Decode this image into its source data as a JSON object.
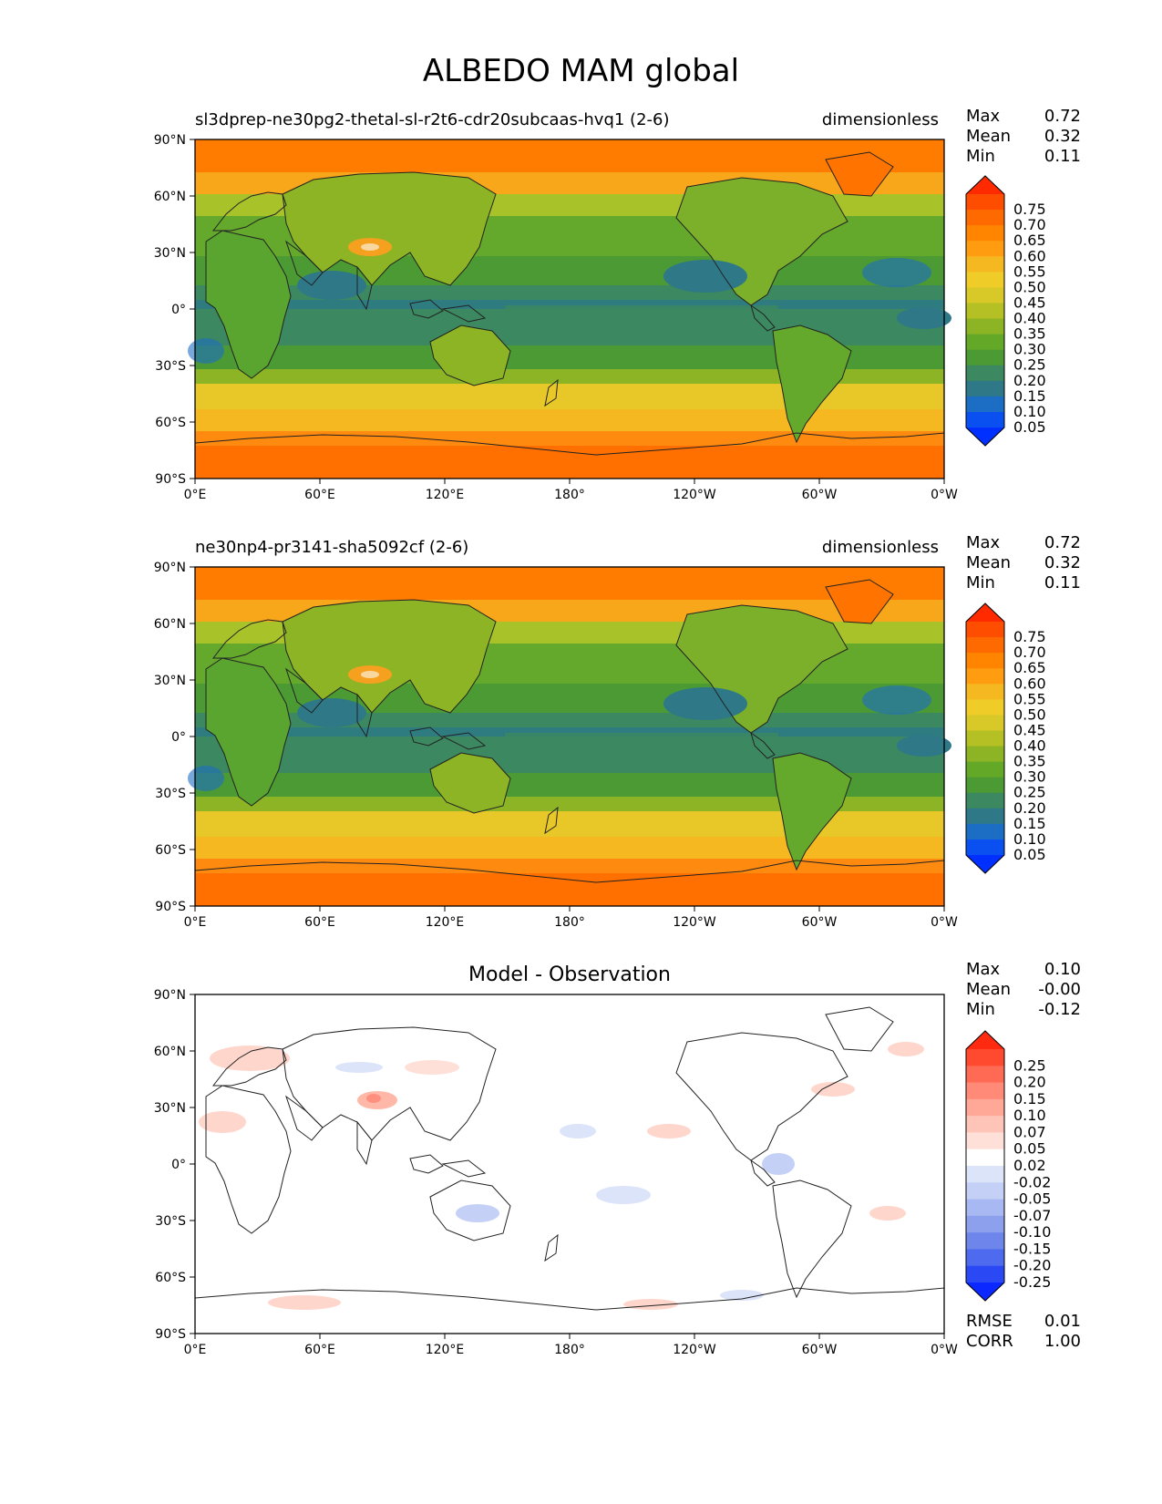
{
  "title": "ALBEDO MAM global",
  "axes": {
    "lat_ticks": [
      "90°N",
      "60°N",
      "30°N",
      "0°",
      "30°S",
      "60°S",
      "90°S"
    ],
    "lon_ticks": [
      "0°E",
      "60°E",
      "120°E",
      "180°",
      "120°W",
      "60°W",
      "0°W"
    ]
  },
  "panels": [
    {
      "title_left": "sl3dprep-ne30pg2-thetal-sl-r2t6-cdr20subcaas-hvq1 (2-6)",
      "title_right": "dimensionless",
      "stats": [
        {
          "label": "Max",
          "value": "0.72"
        },
        {
          "label": "Mean",
          "value": "0.32"
        },
        {
          "label": "Min",
          "value": "0.11"
        }
      ],
      "colorbar": {
        "ticks": [
          "0.75",
          "0.70",
          "0.65",
          "0.60",
          "0.55",
          "0.50",
          "0.45",
          "0.40",
          "0.35",
          "0.30",
          "0.25",
          "0.20",
          "0.15",
          "0.10",
          "0.05"
        ],
        "colors": [
          "#ff2a00",
          "#ff4d00",
          "#ff6a00",
          "#ff8400",
          "#ff9c10",
          "#f6b820",
          "#f0cc28",
          "#d8c828",
          "#b4c024",
          "#8cb424",
          "#64a828",
          "#4c9a34",
          "#3c8860",
          "#2e7888",
          "#1c6ec4",
          "#0a50f0",
          "#0030ff"
        ]
      }
    },
    {
      "title_left": "ne30np4-pr3141-sha5092cf (2-6)",
      "title_right": "dimensionless",
      "stats": [
        {
          "label": "Max",
          "value": "0.72"
        },
        {
          "label": "Mean",
          "value": "0.32"
        },
        {
          "label": "Min",
          "value": "0.11"
        }
      ],
      "colorbar": {
        "ticks": [
          "0.75",
          "0.70",
          "0.65",
          "0.60",
          "0.55",
          "0.50",
          "0.45",
          "0.40",
          "0.35",
          "0.30",
          "0.25",
          "0.20",
          "0.15",
          "0.10",
          "0.05"
        ],
        "colors": [
          "#ff2a00",
          "#ff4d00",
          "#ff6a00",
          "#ff8400",
          "#ff9c10",
          "#f6b820",
          "#f0cc28",
          "#d8c828",
          "#b4c024",
          "#8cb424",
          "#64a828",
          "#4c9a34",
          "#3c8860",
          "#2e7888",
          "#1c6ec4",
          "#0a50f0",
          "#0030ff"
        ]
      }
    },
    {
      "title_center": "Model - Observation",
      "stats": [
        {
          "label": "Max",
          "value": "0.10"
        },
        {
          "label": "Mean",
          "value": "-0.00"
        },
        {
          "label": "Min",
          "value": "-0.12"
        }
      ],
      "extra_stats": [
        {
          "label": "RMSE",
          "value": "0.01"
        },
        {
          "label": "CORR",
          "value": "1.00"
        }
      ],
      "colorbar": {
        "ticks": [
          "0.25",
          "0.20",
          "0.15",
          "0.10",
          "0.07",
          "0.05",
          "0.02",
          "-0.02",
          "-0.05",
          "-0.07",
          "-0.10",
          "-0.15",
          "-0.20",
          "-0.25"
        ],
        "colors": [
          "#ff2a10",
          "#ff4a30",
          "#ff6a55",
          "#ff8a78",
          "#ffa898",
          "#ffc4b8",
          "#ffe0d8",
          "#ffffff",
          "#dce4fa",
          "#c4d0f6",
          "#a8b8f2",
          "#8ca0ee",
          "#6e86ec",
          "#4e6aee",
          "#2a48f4",
          "#0a28ff"
        ]
      }
    }
  ]
}
